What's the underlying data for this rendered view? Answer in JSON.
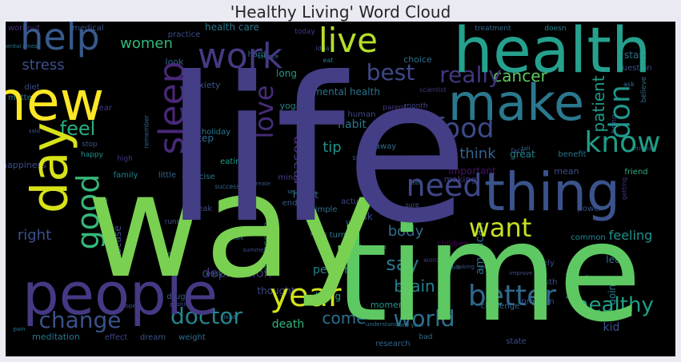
{
  "chart_data": {
    "type": "wordcloud",
    "title": "'Healthy Living' Word Cloud",
    "colormap": "viridis",
    "background": "#000000",
    "words": [
      {
        "text": "life",
        "weight": 1.0,
        "color": "#433e85"
      },
      {
        "text": "way",
        "weight": 0.95,
        "color": "#7ad151"
      },
      {
        "text": "time",
        "weight": 0.92,
        "color": "#5ec962"
      },
      {
        "text": "health",
        "weight": 0.62,
        "color": "#25a18e"
      },
      {
        "text": "people",
        "weight": 0.6,
        "color": "#443983"
      },
      {
        "text": "make",
        "weight": 0.52,
        "color": "#2a788e"
      },
      {
        "text": "new",
        "weight": 0.5,
        "color": "#fde725"
      },
      {
        "text": "thing",
        "weight": 0.5,
        "color": "#3b528b"
      },
      {
        "text": "day",
        "weight": 0.48,
        "color": "#d8e219"
      },
      {
        "text": "sleep",
        "weight": 0.36,
        "color": "#482878"
      },
      {
        "text": "work",
        "weight": 0.34,
        "color": "#443a83"
      },
      {
        "text": "help",
        "weight": 0.34,
        "color": "#38598c"
      },
      {
        "text": "live",
        "weight": 0.3,
        "color": "#b5de2b"
      },
      {
        "text": "year",
        "weight": 0.32,
        "color": "#d2e21b"
      },
      {
        "text": "need",
        "weight": 0.31,
        "color": "#3f4788"
      },
      {
        "text": "good",
        "weight": 0.3,
        "color": "#35b779"
      },
      {
        "text": "know",
        "weight": 0.29,
        "color": "#1f9e89"
      },
      {
        "text": "food",
        "weight": 0.28,
        "color": "#3e4989"
      },
      {
        "text": "better",
        "weight": 0.28,
        "color": "#31688e"
      },
      {
        "text": "want",
        "weight": 0.27,
        "color": "#c8e020"
      },
      {
        "text": "don",
        "weight": 0.26,
        "color": "#1f968b"
      },
      {
        "text": "love",
        "weight": 0.25,
        "color": "#472c7a"
      },
      {
        "text": "world",
        "weight": 0.22,
        "color": "#2c728e"
      },
      {
        "text": "change",
        "weight": 0.22,
        "color": "#3b528b"
      },
      {
        "text": "doctor",
        "weight": 0.22,
        "color": "#25858e"
      },
      {
        "text": "really",
        "weight": 0.2,
        "color": "#453581"
      },
      {
        "text": "best",
        "weight": 0.2,
        "color": "#3f4889"
      },
      {
        "text": "feel",
        "weight": 0.19,
        "color": "#29af7f"
      },
      {
        "text": "healthy",
        "weight": 0.18,
        "color": "#1fa188"
      },
      {
        "text": "say",
        "weight": 0.18,
        "color": "#2a788e"
      },
      {
        "text": "patient",
        "weight": 0.17,
        "color": "#1e9b8a"
      },
      {
        "text": "cancer",
        "weight": 0.15,
        "color": "#5ec962"
      },
      {
        "text": "brain",
        "weight": 0.15,
        "color": "#26828e"
      },
      {
        "text": "come",
        "weight": 0.15,
        "color": "#2d708e"
      },
      {
        "text": "reason",
        "weight": 0.15,
        "color": "#472d7b"
      },
      {
        "text": "stress",
        "weight": 0.14,
        "color": "#3c4f8a"
      },
      {
        "text": "women",
        "weight": 0.13,
        "color": "#35b779"
      },
      {
        "text": "think",
        "weight": 0.13,
        "color": "#33638d"
      },
      {
        "text": "tip",
        "weight": 0.13,
        "color": "#21918c"
      },
      {
        "text": "body",
        "weight": 0.12,
        "color": "#2f6c8e"
      },
      {
        "text": "right",
        "weight": 0.12,
        "color": "#3b528b"
      },
      {
        "text": "depression",
        "weight": 0.11,
        "color": "#46337f"
      },
      {
        "text": "feeling",
        "weight": 0.11,
        "color": "#21918c"
      },
      {
        "text": "american",
        "weight": 0.1,
        "color": "#2e6e8e"
      },
      {
        "text": "person",
        "weight": 0.1,
        "color": "#25848e"
      },
      {
        "text": "death",
        "weight": 0.09,
        "color": "#31b57b"
      },
      {
        "text": "kid",
        "weight": 0.09,
        "color": "#3b528b"
      },
      {
        "text": "mental health",
        "weight": 0.08,
        "color": "#2c728e"
      },
      {
        "text": "diet",
        "weight": 0.08,
        "color": "#3e4a89"
      },
      {
        "text": "habit",
        "weight": 0.08,
        "color": "#2a788e"
      },
      {
        "text": "living",
        "weight": 0.08,
        "color": "#1fa088"
      },
      {
        "text": "heart",
        "weight": 0.08,
        "color": "#2d708e"
      },
      {
        "text": "moment",
        "weight": 0.08,
        "color": "#1f968b"
      },
      {
        "text": "fear",
        "weight": 0.08,
        "color": "#433e85"
      },
      {
        "text": "step",
        "weight": 0.08,
        "color": "#2e6f8e"
      },
      {
        "text": "important",
        "weight": 0.08,
        "color": "#471365"
      },
      {
        "text": "making",
        "weight": 0.08,
        "color": "#443983"
      },
      {
        "text": "great",
        "weight": 0.08,
        "color": "#25838e"
      },
      {
        "text": "let",
        "weight": 0.08,
        "color": "#2a768e"
      },
      {
        "text": "going",
        "weight": 0.08,
        "color": "#26828e"
      },
      {
        "text": "risk",
        "weight": 0.08,
        "color": "#3e4989"
      },
      {
        "text": "thought",
        "weight": 0.08,
        "color": "#3f4788"
      },
      {
        "text": "relationship",
        "weight": 0.07,
        "color": "#2c718e"
      },
      {
        "text": "long",
        "weight": 0.07,
        "color": "#1f9a8a"
      },
      {
        "text": "yoga",
        "weight": 0.07,
        "color": "#24868e"
      },
      {
        "text": "look",
        "weight": 0.06,
        "color": "#2f6b8e"
      },
      {
        "text": "holiday",
        "weight": 0.06,
        "color": "#2a768e"
      },
      {
        "text": "anxiety",
        "weight": 0.06,
        "color": "#3a538b"
      },
      {
        "text": "health care",
        "weight": 0.06,
        "color": "#2b758e"
      },
      {
        "text": "practice",
        "weight": 0.06,
        "color": "#3d4d8a"
      },
      {
        "text": "workout",
        "weight": 0.05,
        "color": "#472a7a"
      },
      {
        "text": "medical",
        "weight": 0.05,
        "color": "#3b518b"
      },
      {
        "text": "matter",
        "weight": 0.05,
        "color": "#2b748e"
      },
      {
        "text": "case",
        "weight": 0.05,
        "color": "#453781"
      },
      {
        "text": "hard",
        "weight": 0.05,
        "color": "#2c738e"
      },
      {
        "text": "today",
        "weight": 0.05,
        "color": "#453882"
      },
      {
        "text": "start",
        "weight": 0.05,
        "color": "#2e6f8e"
      },
      {
        "text": "question",
        "weight": 0.05,
        "color": "#3b518b"
      },
      {
        "text": "treatment",
        "weight": 0.05,
        "color": "#2f6b8e"
      },
      {
        "text": "doesn",
        "weight": 0.05,
        "color": "#25838e"
      },
      {
        "text": "choice",
        "weight": 0.05,
        "color": "#2c718e"
      },
      {
        "text": "month",
        "weight": 0.05,
        "color": "#404588"
      },
      {
        "text": "human",
        "weight": 0.05,
        "color": "#3e4989"
      },
      {
        "text": "parent",
        "weight": 0.05,
        "color": "#443983"
      },
      {
        "text": "away",
        "weight": 0.05,
        "color": "#2d708e"
      },
      {
        "text": "benefit",
        "weight": 0.05,
        "color": "#2b748e"
      },
      {
        "text": "mean",
        "weight": 0.05,
        "color": "#3c4f8a"
      },
      {
        "text": "friend",
        "weight": 0.05,
        "color": "#29af7f"
      },
      {
        "text": "happiness",
        "weight": 0.05,
        "color": "#3d4e8a"
      },
      {
        "text": "family",
        "weight": 0.05,
        "color": "#26828e"
      },
      {
        "text": "little",
        "weight": 0.05,
        "color": "#32658e"
      },
      {
        "text": "exercise",
        "weight": 0.05,
        "color": "#2a778e"
      },
      {
        "text": "eating",
        "weight": 0.05,
        "color": "#1e9c89"
      },
      {
        "text": "mind",
        "weight": 0.05,
        "color": "#423f85"
      },
      {
        "text": "simple",
        "weight": 0.05,
        "color": "#2d708e"
      },
      {
        "text": "happen",
        "weight": 0.05,
        "color": "#31678e"
      },
      {
        "text": "disease",
        "weight": 0.05,
        "color": "#3d4d8a"
      },
      {
        "text": "high",
        "weight": 0.05,
        "color": "#46327e"
      },
      {
        "text": "happy",
        "weight": 0.05,
        "color": "#20928c"
      },
      {
        "text": "break",
        "weight": 0.05,
        "color": "#3e4c8a"
      },
      {
        "text": "actually",
        "weight": 0.05,
        "color": "#3f4889"
      },
      {
        "text": "turn",
        "weight": 0.05,
        "color": "#2a788e"
      },
      {
        "text": "end",
        "weight": 0.05,
        "color": "#38588c"
      },
      {
        "text": "power",
        "weight": 0.05,
        "color": "#3d4e8a"
      },
      {
        "text": "common",
        "weight": 0.05,
        "color": "#25858e"
      },
      {
        "text": "children",
        "weight": 0.05,
        "color": "#450457"
      },
      {
        "text": "key",
        "weight": 0.05,
        "color": "#2a788e"
      },
      {
        "text": "easy",
        "weight": 0.05,
        "color": "#1f958b"
      },
      {
        "text": "truth",
        "weight": 0.05,
        "color": "#3b528b"
      },
      {
        "text": "problem",
        "weight": 0.05,
        "color": "#3c508b"
      },
      {
        "text": "challenge",
        "weight": 0.05,
        "color": "#306a8e"
      },
      {
        "text": "likely",
        "weight": 0.05,
        "color": "#3d4e8a"
      },
      {
        "text": "drug",
        "weight": 0.05,
        "color": "#365d8d"
      },
      {
        "text": "meditation",
        "weight": 0.05,
        "color": "#2b758e"
      },
      {
        "text": "effect",
        "weight": 0.05,
        "color": "#404588"
      },
      {
        "text": "dream",
        "weight": 0.05,
        "color": "#3b518b"
      },
      {
        "text": "weight",
        "weight": 0.05,
        "color": "#2d708e"
      },
      {
        "text": "research",
        "weight": 0.05,
        "color": "#33638d"
      },
      {
        "text": "bad",
        "weight": 0.05,
        "color": "#2e6d8e"
      },
      {
        "text": "state",
        "weight": 0.05,
        "color": "#3d4e8a"
      },
      {
        "text": "new year",
        "weight": 0.04,
        "color": "#2b758e"
      },
      {
        "text": "understand",
        "weight": 0.04,
        "color": "#2d718e"
      },
      {
        "text": "word",
        "weight": 0.04,
        "color": "#453581"
      },
      {
        "text": "finding",
        "weight": 0.04,
        "color": "#2e6f8e"
      },
      {
        "text": "running",
        "weight": 0.04,
        "color": "#3d4e8a"
      },
      {
        "text": "stop",
        "weight": 0.04,
        "color": "#3b528b"
      },
      {
        "text": "self",
        "weight": 0.04,
        "color": "#3f4788"
      },
      {
        "text": "remember",
        "weight": 0.04,
        "color": "#31678e"
      },
      {
        "text": "science",
        "weight": 0.04,
        "color": "#25838e"
      },
      {
        "text": "idea",
        "weight": 0.04,
        "color": "#3c4f8a"
      },
      {
        "text": "eat",
        "weight": 0.04,
        "color": "#2a788e"
      },
      {
        "text": "face",
        "weight": 0.04,
        "color": "#3d4e8a"
      },
      {
        "text": "believe",
        "weight": 0.04,
        "color": "#2e6f8e"
      },
      {
        "text": "suicide",
        "weight": 0.04,
        "color": "#3a548c"
      },
      {
        "text": "scientist",
        "weight": 0.04,
        "color": "#46337f"
      },
      {
        "text": "bring",
        "weight": 0.04,
        "color": "#3e4c8a"
      },
      {
        "text": "ask",
        "weight": 0.03,
        "color": "#2f6b8e"
      },
      {
        "text": "fitness",
        "weight": 0.03,
        "color": "#3b528b"
      },
      {
        "text": "getting",
        "weight": 0.03,
        "color": "#46307e"
      },
      {
        "text": "fall",
        "weight": 0.03,
        "color": "#2d708e"
      },
      {
        "text": "sure",
        "weight": 0.03,
        "color": "#3e4c8a"
      },
      {
        "text": "success",
        "weight": 0.03,
        "color": "#31678e"
      },
      {
        "text": "create",
        "weight": 0.03,
        "color": "#3b528b"
      },
      {
        "text": "secret",
        "weight": 0.03,
        "color": "#2b758e"
      },
      {
        "text": "ebola",
        "weight": 0.03,
        "color": "#3c4f8a"
      },
      {
        "text": "job",
        "weight": 0.03,
        "color": "#2d718e"
      },
      {
        "text": "open",
        "weight": 0.03,
        "color": "#3e4c8a"
      },
      {
        "text": "place",
        "weight": 0.03,
        "color": "#2a778e"
      },
      {
        "text": "week",
        "weight": 0.03,
        "color": "#3b528b"
      },
      {
        "text": "share",
        "weight": 0.03,
        "color": "#404588"
      },
      {
        "text": "possible",
        "weight": 0.03,
        "color": "#2e6d8e"
      },
      {
        "text": "taking",
        "weight": 0.03,
        "color": "#3b528b"
      },
      {
        "text": "journey",
        "weight": 0.03,
        "color": "#2b758e"
      },
      {
        "text": "improve",
        "weight": 0.03,
        "color": "#3d4e8a"
      },
      {
        "text": "hospital",
        "weight": 0.03,
        "color": "#2d708e"
      },
      {
        "text": "stay",
        "weight": 0.03,
        "color": "#3b528b"
      },
      {
        "text": "lead",
        "weight": 0.03,
        "color": "#2f6b8e"
      },
      {
        "text": "positive",
        "weight": 0.03,
        "color": "#3e4c8a"
      },
      {
        "text": "pain",
        "weight": 0.03,
        "color": "#2a778e"
      },
      {
        "text": "hope",
        "weight": 0.03,
        "color": "#3b528b"
      },
      {
        "text": "talk",
        "weight": 0.03,
        "color": "#2d718e"
      },
      {
        "text": "summer",
        "weight": 0.03,
        "color": "#3e4c8a"
      },
      {
        "text": "mental illness",
        "weight": 0.03,
        "color": "#2b758e"
      },
      {
        "text": "said",
        "weight": 0.03,
        "color": "#3b528b"
      },
      {
        "text": "wrong",
        "weight": 0.03,
        "color": "#404588"
      },
      {
        "text": "single",
        "weight": 0.03,
        "color": "#2e6d8e"
      },
      {
        "text": "study",
        "weight": 0.03,
        "color": "#3c4f8a"
      }
    ]
  }
}
